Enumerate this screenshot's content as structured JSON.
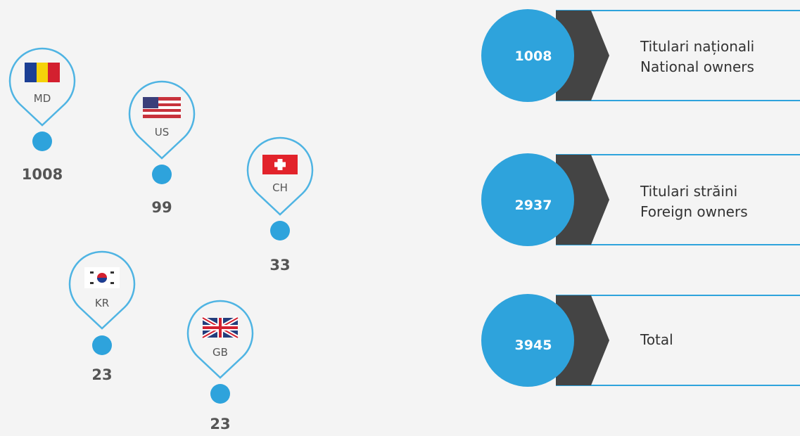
{
  "pins": [
    {
      "code": "MD",
      "value": "1008"
    },
    {
      "code": "US",
      "value": "99"
    },
    {
      "code": "CH",
      "value": "33"
    },
    {
      "code": "KR",
      "value": "23"
    },
    {
      "code": "GB",
      "value": "23"
    }
  ],
  "summary": [
    {
      "value": "1008",
      "lines": [
        "Titulari naționali",
        "National owners"
      ]
    },
    {
      "value": "2937",
      "lines": [
        "Titulari străini",
        "Foreign owners"
      ]
    },
    {
      "value": "3945",
      "lines": [
        "Total"
      ]
    }
  ]
}
